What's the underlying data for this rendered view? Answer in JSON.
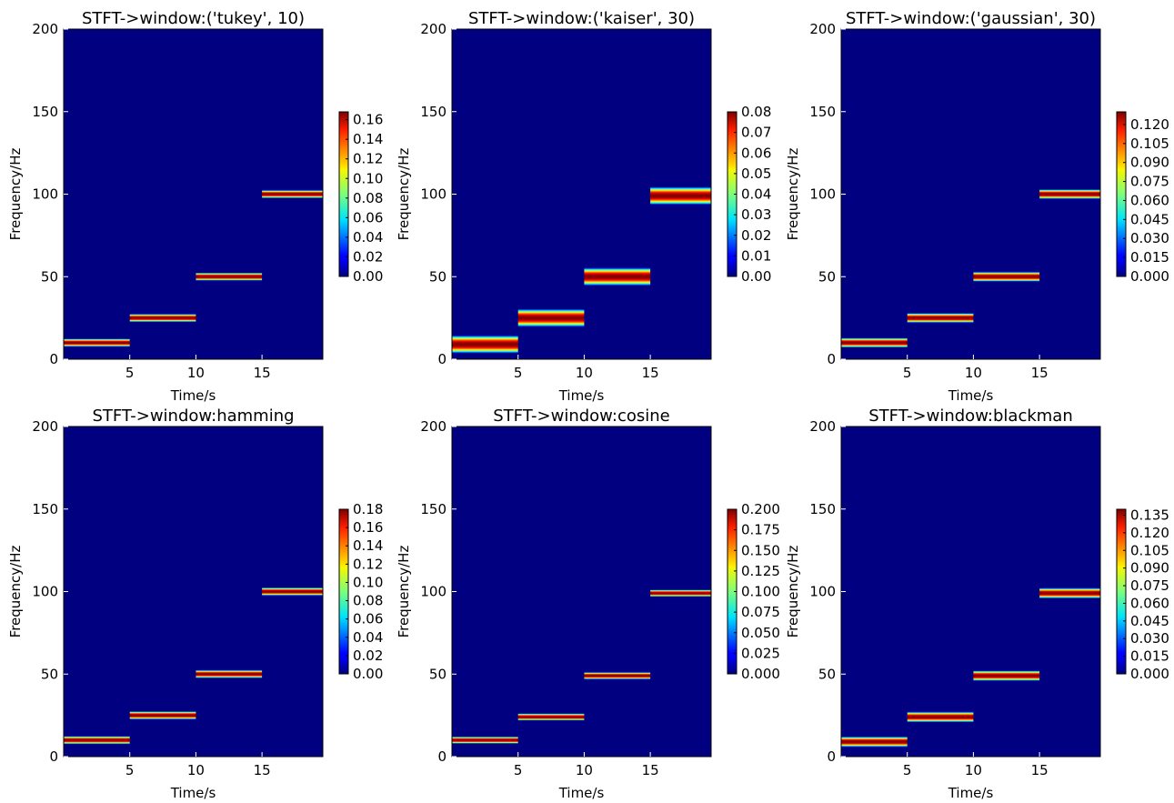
{
  "figure": {
    "xlabel": "Time/s",
    "ylabel": "Frequency/Hz",
    "background_color": "#000080",
    "colormap": "jet"
  },
  "chart_data": [
    {
      "type": "heatmap",
      "title": "STFT->window:('tukey', 10)",
      "xlabel": "Time/s",
      "ylabel": "Frequency/Hz",
      "xlim": [
        0,
        19.6
      ],
      "ylim": [
        0,
        200
      ],
      "xticks": [
        "5",
        "10",
        "15"
      ],
      "yticks": [
        "0",
        "50",
        "100",
        "150",
        "200"
      ],
      "bands": [
        {
          "t_start": 0,
          "t_end": 5,
          "freq_hz": 10,
          "half_width_hz": 2.5
        },
        {
          "t_start": 5,
          "t_end": 10,
          "freq_hz": 25,
          "half_width_hz": 2.5
        },
        {
          "t_start": 10,
          "t_end": 15,
          "freq_hz": 50,
          "half_width_hz": 2.5
        },
        {
          "t_start": 15,
          "t_end": 19.6,
          "freq_hz": 100,
          "half_width_hz": 2.5
        }
      ],
      "colorbar": {
        "min": 0,
        "max": 0.168,
        "ticks": [
          "0.00",
          "0.02",
          "0.04",
          "0.06",
          "0.08",
          "0.10",
          "0.12",
          "0.14",
          "0.16"
        ]
      }
    },
    {
      "type": "heatmap",
      "title": "STFT->window:('kaiser', 30)",
      "xlabel": "Time/s",
      "ylabel": "Frequency/Hz",
      "xlim": [
        0,
        19.6
      ],
      "ylim": [
        0,
        200
      ],
      "xticks": [
        "5",
        "10",
        "15"
      ],
      "yticks": [
        "0",
        "50",
        "100",
        "150",
        "200"
      ],
      "bands": [
        {
          "t_start": 0,
          "t_end": 5,
          "freq_hz": 9,
          "half_width_hz": 5.5
        },
        {
          "t_start": 5,
          "t_end": 10,
          "freq_hz": 25,
          "half_width_hz": 5.5
        },
        {
          "t_start": 10,
          "t_end": 15,
          "freq_hz": 50,
          "half_width_hz": 5.5
        },
        {
          "t_start": 15,
          "t_end": 19.6,
          "freq_hz": 99,
          "half_width_hz": 5.5
        }
      ],
      "colorbar": {
        "min": 0,
        "max": 0.08,
        "ticks": [
          "0.00",
          "0.01",
          "0.02",
          "0.03",
          "0.04",
          "0.05",
          "0.06",
          "0.07",
          "0.08"
        ]
      }
    },
    {
      "type": "heatmap",
      "title": "STFT->window:('gaussian', 30)",
      "xlabel": "Time/s",
      "ylabel": "Frequency/Hz",
      "xlim": [
        0,
        19.6
      ],
      "ylim": [
        0,
        200
      ],
      "xticks": [
        "5",
        "10",
        "15"
      ],
      "yticks": [
        "0",
        "50",
        "100",
        "150",
        "200"
      ],
      "bands": [
        {
          "t_start": 0,
          "t_end": 5,
          "freq_hz": 10,
          "half_width_hz": 3
        },
        {
          "t_start": 5,
          "t_end": 10,
          "freq_hz": 25,
          "half_width_hz": 3
        },
        {
          "t_start": 10,
          "t_end": 15,
          "freq_hz": 50,
          "half_width_hz": 3
        },
        {
          "t_start": 15,
          "t_end": 19.6,
          "freq_hz": 100,
          "half_width_hz": 3
        }
      ],
      "colorbar": {
        "min": 0,
        "max": 0.13,
        "ticks": [
          "0.000",
          "0.015",
          "0.030",
          "0.045",
          "0.060",
          "0.075",
          "0.090",
          "0.105",
          "0.120"
        ]
      }
    },
    {
      "type": "heatmap",
      "title": "STFT->window:hamming",
      "xlabel": "Time/s",
      "ylabel": "Frequency/Hz",
      "xlim": [
        0,
        19.6
      ],
      "ylim": [
        0,
        200
      ],
      "xticks": [
        "5",
        "10",
        "15"
      ],
      "yticks": [
        "0",
        "50",
        "100",
        "150",
        "200"
      ],
      "bands": [
        {
          "t_start": 0,
          "t_end": 5,
          "freq_hz": 10,
          "half_width_hz": 2.5
        },
        {
          "t_start": 5,
          "t_end": 10,
          "freq_hz": 25,
          "half_width_hz": 2.5
        },
        {
          "t_start": 10,
          "t_end": 15,
          "freq_hz": 50,
          "half_width_hz": 2.5
        },
        {
          "t_start": 15,
          "t_end": 19.6,
          "freq_hz": 100,
          "half_width_hz": 2.5
        }
      ],
      "colorbar": {
        "min": 0,
        "max": 0.18,
        "ticks": [
          "0.00",
          "0.02",
          "0.04",
          "0.06",
          "0.08",
          "0.10",
          "0.12",
          "0.14",
          "0.16",
          "0.18"
        ]
      }
    },
    {
      "type": "heatmap",
      "title": "STFT->window:cosine",
      "xlabel": "Time/s",
      "ylabel": "Frequency/Hz",
      "xlim": [
        0,
        19.6
      ],
      "ylim": [
        0,
        200
      ],
      "xticks": [
        "5",
        "10",
        "15"
      ],
      "yticks": [
        "0",
        "50",
        "100",
        "150",
        "200"
      ],
      "bands": [
        {
          "t_start": 0,
          "t_end": 5,
          "freq_hz": 10,
          "half_width_hz": 2.2
        },
        {
          "t_start": 5,
          "t_end": 10,
          "freq_hz": 24,
          "half_width_hz": 2.2
        },
        {
          "t_start": 10,
          "t_end": 15,
          "freq_hz": 49,
          "half_width_hz": 2.2
        },
        {
          "t_start": 15,
          "t_end": 19.6,
          "freq_hz": 99,
          "half_width_hz": 2.2
        }
      ],
      "colorbar": {
        "min": 0,
        "max": 0.2,
        "ticks": [
          "0.000",
          "0.025",
          "0.050",
          "0.075",
          "0.100",
          "0.125",
          "0.150",
          "0.175",
          "0.200"
        ]
      }
    },
    {
      "type": "heatmap",
      "title": "STFT->window:blackman",
      "xlabel": "Time/s",
      "ylabel": "Frequency/Hz",
      "xlim": [
        0,
        19.6
      ],
      "ylim": [
        0,
        200
      ],
      "xticks": [
        "5",
        "10",
        "15"
      ],
      "yticks": [
        "0",
        "50",
        "100",
        "150",
        "200"
      ],
      "bands": [
        {
          "t_start": 0,
          "t_end": 5,
          "freq_hz": 9,
          "half_width_hz": 3.2
        },
        {
          "t_start": 5,
          "t_end": 10,
          "freq_hz": 24,
          "half_width_hz": 3.2
        },
        {
          "t_start": 10,
          "t_end": 15,
          "freq_hz": 49,
          "half_width_hz": 3.2
        },
        {
          "t_start": 15,
          "t_end": 19.6,
          "freq_hz": 99,
          "half_width_hz": 3.2
        }
      ],
      "colorbar": {
        "min": 0,
        "max": 0.14,
        "ticks": [
          "0.000",
          "0.015",
          "0.030",
          "0.045",
          "0.060",
          "0.075",
          "0.090",
          "0.105",
          "0.120",
          "0.135"
        ]
      }
    }
  ]
}
